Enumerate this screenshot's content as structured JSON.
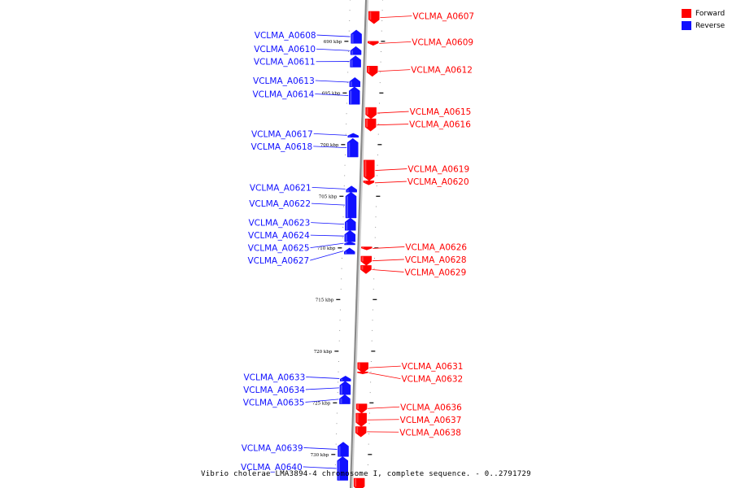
{
  "colors": {
    "forward": "#ff0000",
    "reverse": "#1010ff",
    "axis": "#888888"
  },
  "legend": [
    {
      "label": "Forward",
      "color": "#ff0000"
    },
    {
      "label": "Reverse",
      "color": "#1010ff"
    }
  ],
  "footer": "Vibrio cholerae LMA3894-4 chromosome I, complete sequence. - 0..2791729",
  "ticks": [
    {
      "label": "690 kbp",
      "kbp": 690
    },
    {
      "label": "695 kbp",
      "kbp": 695
    },
    {
      "label": "700 kbp",
      "kbp": 700
    },
    {
      "label": "705 kbp",
      "kbp": 705
    },
    {
      "label": "710 kbp",
      "kbp": 710
    },
    {
      "label": "715 kbp",
      "kbp": 715
    },
    {
      "label": "720 kbp",
      "kbp": 720
    },
    {
      "label": "725 kbp",
      "kbp": 725
    },
    {
      "label": "730 kbp",
      "kbp": 730
    }
  ],
  "genes": [
    {
      "name": "VCLMA_A0607",
      "strand": "forward",
      "start": 687.1,
      "end": 688.3
    },
    {
      "name": "VCLMA_A0608",
      "strand": "reverse",
      "start": 688.9,
      "end": 690.2
    },
    {
      "name": "VCLMA_A0609",
      "strand": "forward",
      "start": 690.0,
      "end": 690.4
    },
    {
      "name": "VCLMA_A0610",
      "strand": "reverse",
      "start": 690.5,
      "end": 691.3
    },
    {
      "name": "VCLMA_A0611",
      "strand": "reverse",
      "start": 691.4,
      "end": 692.5
    },
    {
      "name": "VCLMA_A0612",
      "strand": "forward",
      "start": 692.4,
      "end": 693.4
    },
    {
      "name": "VCLMA_A0613",
      "strand": "reverse",
      "start": 693.5,
      "end": 694.4
    },
    {
      "name": "VCLMA_A0614",
      "strand": "reverse",
      "start": 694.4,
      "end": 696.1
    },
    {
      "name": "VCLMA_A0615",
      "strand": "forward",
      "start": 696.4,
      "end": 697.5
    },
    {
      "name": "VCLMA_A0616",
      "strand": "forward",
      "start": 697.5,
      "end": 698.7
    },
    {
      "name": "VCLMA_A0617",
      "strand": "reverse",
      "start": 698.9,
      "end": 699.3
    },
    {
      "name": "VCLMA_A0618",
      "strand": "reverse",
      "start": 699.4,
      "end": 701.2
    },
    {
      "name": "VCLMA_A0619",
      "strand": "forward",
      "start": 701.5,
      "end": 703.5
    },
    {
      "name": "VCLMA_A0620",
      "strand": "forward",
      "start": 703.5,
      "end": 703.9
    },
    {
      "name": "VCLMA_A0621",
      "strand": "reverse",
      "start": 704.0,
      "end": 704.6
    },
    {
      "name": "VCLMA_A0622",
      "strand": "reverse",
      "start": 704.6,
      "end": 707.1
    },
    {
      "name": "VCLMA_A0623",
      "strand": "reverse",
      "start": 707.1,
      "end": 708.3
    },
    {
      "name": "VCLMA_A0624",
      "strand": "reverse",
      "start": 708.3,
      "end": 709.4
    },
    {
      "name": "VCLMA_A0625",
      "strand": "reverse",
      "start": 709.4,
      "end": 709.7
    },
    {
      "name": "VCLMA_A0626",
      "strand": "forward",
      "start": 709.9,
      "end": 710.2
    },
    {
      "name": "VCLMA_A0627",
      "strand": "reverse",
      "start": 710.0,
      "end": 710.6
    },
    {
      "name": "VCLMA_A0628",
      "strand": "forward",
      "start": 710.8,
      "end": 711.7
    },
    {
      "name": "VCLMA_A0629",
      "strand": "forward",
      "start": 711.7,
      "end": 712.5
    },
    {
      "name": "VCLMA_A0631",
      "strand": "forward",
      "start": 721.1,
      "end": 722.1
    },
    {
      "name": "VCLMA_A0632",
      "strand": "forward",
      "start": 722.0,
      "end": 722.2
    },
    {
      "name": "VCLMA_A0633",
      "strand": "reverse",
      "start": 722.4,
      "end": 722.9
    },
    {
      "name": "VCLMA_A0634",
      "strand": "reverse",
      "start": 722.9,
      "end": 724.2
    },
    {
      "name": "VCLMA_A0635",
      "strand": "reverse",
      "start": 724.2,
      "end": 725.1
    },
    {
      "name": "VCLMA_A0636",
      "strand": "forward",
      "start": 725.1,
      "end": 726.0
    },
    {
      "name": "VCLMA_A0637",
      "strand": "forward",
      "start": 726.0,
      "end": 727.3
    },
    {
      "name": "VCLMA_A0638",
      "strand": "forward",
      "start": 727.3,
      "end": 728.3
    },
    {
      "name": "VCLMA_A0639",
      "strand": "reverse",
      "start": 728.8,
      "end": 730.2
    },
    {
      "name": "VCLMA_A0640",
      "strand": "reverse",
      "start": 730.2,
      "end": 732.5
    },
    {
      "name": "",
      "strand": "forward",
      "start": 732.3,
      "end": 733.5
    }
  ]
}
